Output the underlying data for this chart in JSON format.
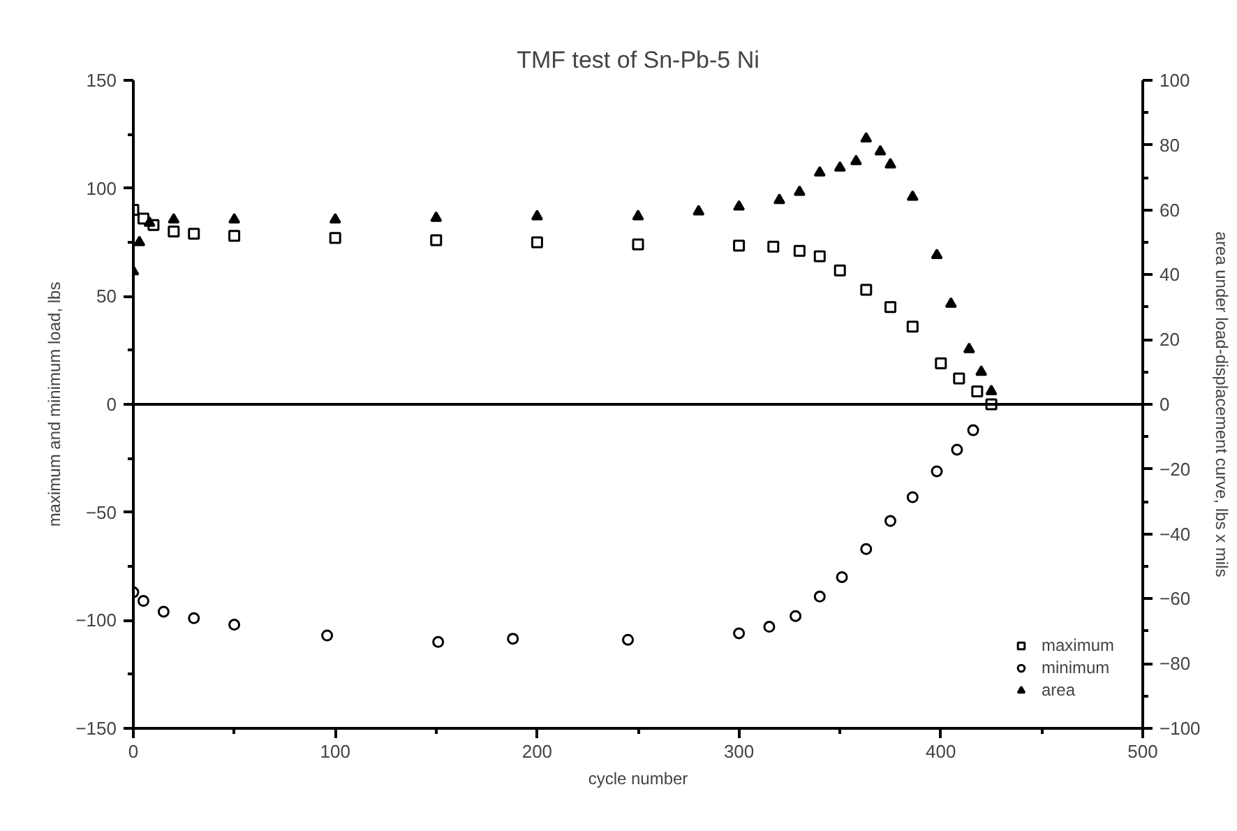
{
  "chart_data": {
    "type": "scatter",
    "title": "TMF test of Sn-Pb-5 Ni",
    "xlabel": "cycle number",
    "ylabel": "maximum and minimum load, lbs",
    "y2label": "area under load-displacement curve, lbs x mils",
    "xlim": [
      0,
      500
    ],
    "xticks": [
      0,
      {
        "value": 50,
        "label": null
      },
      100,
      {
        "value": 150,
        "label": null
      },
      200,
      {
        "value": 250,
        "label": null
      },
      300,
      {
        "value": 350,
        "label": null
      },
      400,
      {
        "value": 450,
        "label": null
      },
      500
    ],
    "ylim": [
      -150,
      150
    ],
    "yticks": [
      -150,
      {
        "value": -125,
        "label": null
      },
      -100,
      {
        "value": -75,
        "label": null
      },
      -50,
      {
        "value": -25,
        "label": null
      },
      0,
      {
        "value": 25,
        "label": null
      },
      50,
      {
        "value": 75,
        "label": null
      },
      100,
      {
        "value": 125,
        "label": null
      },
      150
    ],
    "y2lim": [
      -100,
      100
    ],
    "y2ticks": [
      -100,
      {
        "value": -90,
        "label": null
      },
      -80,
      {
        "value": -70,
        "label": null
      },
      -60,
      {
        "value": -50,
        "label": null
      },
      -40,
      {
        "value": -30,
        "label": null
      },
      -20,
      {
        "value": -10,
        "label": null
      },
      0,
      {
        "value": 10,
        "label": null
      },
      20,
      {
        "value": 30,
        "label": null
      },
      40,
      {
        "value": 50,
        "label": null
      },
      60,
      {
        "value": 70,
        "label": null
      },
      80,
      {
        "value": 90,
        "label": null
      },
      100
    ],
    "grid": false,
    "legend": "bottom right",
    "ref_lines": [
      {
        "axis": "y",
        "value": 0,
        "label": null,
        "color": "#000000"
      }
    ],
    "series": [
      {
        "name": "maximum",
        "color": "#000000",
        "marker": "square",
        "x": [
          0,
          5,
          10,
          20,
          30,
          50,
          100,
          150,
          200,
          250,
          300,
          317,
          330,
          340,
          350,
          363,
          375,
          386,
          400,
          409,
          418,
          425
        ],
        "values": [
          90,
          86,
          83,
          80,
          79,
          78,
          77,
          76,
          75,
          74,
          73.5,
          73,
          71,
          68.5,
          62,
          53,
          45,
          36,
          19,
          12,
          6,
          0
        ]
      },
      {
        "name": "minimum",
        "color": "#000000",
        "marker": "circle",
        "x": [
          0,
          5,
          15,
          30,
          50,
          96,
          151,
          188,
          245,
          300,
          315,
          328,
          340,
          351,
          363,
          375,
          386,
          398,
          408,
          416
        ],
        "values": [
          -87,
          -91,
          -96,
          -99,
          -102,
          -107,
          -110,
          -108.5,
          -109,
          -106,
          -103,
          -98,
          -89,
          -80,
          -67,
          -54,
          -43,
          -31,
          -21,
          -12
        ]
      },
      {
        "name": "area",
        "color": "#000000",
        "marker": "triangle",
        "axis": "y2",
        "x": [
          0,
          3,
          8,
          20,
          50,
          100,
          150,
          200,
          250,
          280,
          300,
          320,
          330,
          340,
          350,
          358,
          363,
          370,
          375,
          386,
          398,
          405,
          414,
          420,
          425
        ],
        "values": [
          41,
          50,
          56,
          57,
          57,
          57,
          57.5,
          58,
          58,
          59.5,
          61,
          63,
          65.5,
          71.5,
          73,
          75,
          82,
          78,
          74,
          64,
          46,
          31,
          17,
          10,
          4
        ]
      }
    ]
  }
}
